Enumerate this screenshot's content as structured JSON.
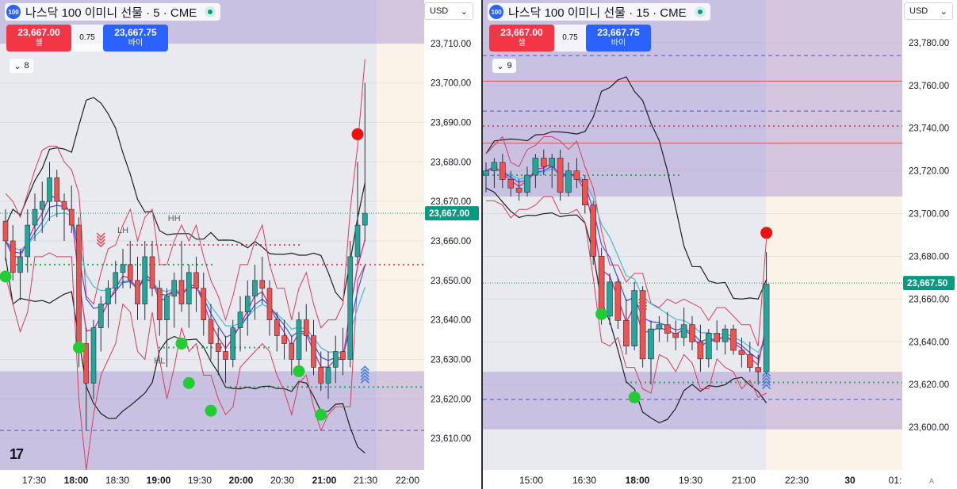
{
  "chart_data": [
    {
      "type": "candlestick",
      "title": "나스닥 100 이미니 선물 · 5 · CME",
      "symbol_badge": "100",
      "sell": {
        "price": "23,667.00",
        "label": "셀"
      },
      "buy": {
        "price": "23,667.75",
        "label": "바이"
      },
      "spread": "0.75",
      "indicator_collapse": "8",
      "currency": "USD",
      "ylim": [
        23602,
        23721
      ],
      "y_ticks": [
        23610,
        23620,
        23630,
        23640,
        23650,
        23660,
        23670,
        23680,
        23690,
        23700,
        23710
      ],
      "y_tick_labels": [
        "23,610.00",
        "23,620.00",
        "23,630.00",
        "23,640.00",
        "23,650.00",
        "23,660.00",
        "23,670.00",
        "23,680.00",
        "23,690.00",
        "23,700.00",
        "23,710.00"
      ],
      "last_price_label": "23,667.00",
      "last_price": 23667,
      "x_tick_labels": [
        "17:30",
        "18:00",
        "18:30",
        "19:00",
        "19:30",
        "20:00",
        "20:30",
        "21:00",
        "21:30",
        "22:00"
      ],
      "annotations": [
        "LH",
        "HH",
        "HL"
      ],
      "zones": [
        {
          "from": 23710,
          "to": 23721,
          "kind": "supply"
        },
        {
          "from": 23602,
          "to": 23627,
          "kind": "demand"
        }
      ],
      "candles": [
        [
          23665,
          23668,
          23655,
          23660
        ],
        [
          23660,
          23664,
          23650,
          23652
        ],
        [
          23652,
          23658,
          23645,
          23656
        ],
        [
          23656,
          23668,
          23652,
          23664
        ],
        [
          23664,
          23672,
          23660,
          23668
        ],
        [
          23668,
          23675,
          23662,
          23670
        ],
        [
          23670,
          23680,
          23665,
          23676
        ],
        [
          23676,
          23678,
          23666,
          23670
        ],
        [
          23670,
          23672,
          23660,
          23668
        ],
        [
          23668,
          23674,
          23662,
          23664
        ],
        [
          23664,
          23666,
          23628,
          23634
        ],
        [
          23634,
          23638,
          23612,
          23624
        ],
        [
          23624,
          23640,
          23620,
          23638
        ],
        [
          23638,
          23646,
          23632,
          23644
        ],
        [
          23644,
          23650,
          23638,
          23648
        ],
        [
          23648,
          23655,
          23644,
          23652
        ],
        [
          23652,
          23658,
          23648,
          23654
        ],
        [
          23654,
          23660,
          23648,
          23650
        ],
        [
          23650,
          23656,
          23640,
          23644
        ],
        [
          23644,
          23660,
          23640,
          23656
        ],
        [
          23656,
          23660,
          23646,
          23648
        ],
        [
          23648,
          23650,
          23636,
          23640
        ],
        [
          23640,
          23648,
          23628,
          23646
        ],
        [
          23646,
          23652,
          23638,
          23650
        ],
        [
          23650,
          23660,
          23642,
          23644
        ],
        [
          23644,
          23654,
          23638,
          23652
        ],
        [
          23652,
          23656,
          23642,
          23648
        ],
        [
          23648,
          23652,
          23636,
          23640
        ],
        [
          23640,
          23644,
          23630,
          23634
        ],
        [
          23634,
          23638,
          23626,
          23632
        ],
        [
          23632,
          23636,
          23624,
          23630
        ],
        [
          23630,
          23640,
          23628,
          23638
        ],
        [
          23638,
          23646,
          23632,
          23642
        ],
        [
          23642,
          23650,
          23636,
          23646
        ],
        [
          23646,
          23654,
          23640,
          23650
        ],
        [
          23650,
          23656,
          23644,
          23648
        ],
        [
          23648,
          23650,
          23636,
          23640
        ],
        [
          23640,
          23642,
          23632,
          23636
        ],
        [
          23636,
          23640,
          23630,
          23634
        ],
        [
          23634,
          23636,
          23626,
          23630
        ],
        [
          23630,
          23642,
          23628,
          23640
        ],
        [
          23640,
          23644,
          23632,
          23636
        ],
        [
          23636,
          23640,
          23626,
          23628
        ],
        [
          23628,
          23632,
          23622,
          23624
        ],
        [
          23624,
          23632,
          23620,
          23628
        ],
        [
          23628,
          23636,
          23624,
          23632
        ],
        [
          23632,
          23638,
          23626,
          23630
        ],
        [
          23630,
          23660,
          23628,
          23656
        ],
        [
          23656,
          23680,
          23654,
          23664
        ],
        [
          23664,
          23700,
          23660,
          23667
        ]
      ],
      "signals": [
        {
          "type": "buy",
          "i": 0,
          "price": 23651
        },
        {
          "type": "buy",
          "i": 10,
          "price": 23633
        },
        {
          "type": "buy",
          "i": 24,
          "price": 23634
        },
        {
          "type": "buy",
          "i": 25,
          "price": 23624
        },
        {
          "type": "buy",
          "i": 28,
          "price": 23617
        },
        {
          "type": "buy",
          "i": 40,
          "price": 23627
        },
        {
          "type": "buy",
          "i": 43,
          "price": 23616
        },
        {
          "type": "sell",
          "i": 48,
          "price": 23687
        }
      ]
    },
    {
      "type": "candlestick",
      "title": "나스닥 100 이미니 선물 · 15 · CME",
      "symbol_badge": "100",
      "sell": {
        "price": "23,667.00",
        "label": "셀"
      },
      "buy": {
        "price": "23,667.75",
        "label": "바이"
      },
      "spread": "0.75",
      "indicator_collapse": "9",
      "currency": "USD",
      "ylim": [
        23580,
        23800
      ],
      "y_ticks": [
        23600,
        23620,
        23640,
        23660,
        23680,
        23700,
        23720,
        23740,
        23760,
        23780
      ],
      "y_tick_labels": [
        "23,600.00",
        "23,620.00",
        "23,640.00",
        "23,660.00",
        "23,680.00",
        "23,700.00",
        "23,720.00",
        "23,740.00",
        "23,760.00",
        "23,780.00"
      ],
      "last_price_label": "23,667.50",
      "last_price": 23667.5,
      "x_tick_labels": [
        "15:00",
        "16:30",
        "18:00",
        "19:30",
        "21:00",
        "22:30",
        "30",
        "01:"
      ],
      "axis_corner": "A",
      "zones": [
        {
          "from": 23708,
          "to": 23800,
          "kind": "supply"
        },
        {
          "from": 23599,
          "to": 23626,
          "kind": "demand"
        }
      ],
      "candles": [
        [
          23718,
          23724,
          23710,
          23720
        ],
        [
          23720,
          23726,
          23712,
          23724
        ],
        [
          23724,
          23728,
          23712,
          23716
        ],
        [
          23716,
          23720,
          23708,
          23712
        ],
        [
          23712,
          23716,
          23706,
          23710
        ],
        [
          23710,
          23722,
          23708,
          23718
        ],
        [
          23718,
          23728,
          23712,
          23726
        ],
        [
          23726,
          23730,
          23718,
          23722
        ],
        [
          23722,
          23728,
          23712,
          23726
        ],
        [
          23726,
          23730,
          23706,
          23710
        ],
        [
          23710,
          23724,
          23708,
          23720
        ],
        [
          23720,
          23726,
          23712,
          23716
        ],
        [
          23716,
          23718,
          23700,
          23704
        ],
        [
          23704,
          23706,
          23676,
          23680
        ],
        [
          23680,
          23684,
          23648,
          23652
        ],
        [
          23652,
          23672,
          23648,
          23668
        ],
        [
          23668,
          23670,
          23646,
          23650
        ],
        [
          23650,
          23660,
          23634,
          23638
        ],
        [
          23638,
          23668,
          23636,
          23664
        ],
        [
          23664,
          23666,
          23628,
          23632
        ],
        [
          23632,
          23650,
          23620,
          23646
        ],
        [
          23646,
          23652,
          23640,
          23648
        ],
        [
          23648,
          23654,
          23640,
          23644
        ],
        [
          23644,
          23650,
          23636,
          23642
        ],
        [
          23642,
          23656,
          23638,
          23648
        ],
        [
          23648,
          23652,
          23636,
          23640
        ],
        [
          23640,
          23648,
          23626,
          23632
        ],
        [
          23632,
          23646,
          23628,
          23644
        ],
        [
          23644,
          23650,
          23636,
          23640
        ],
        [
          23640,
          23648,
          23634,
          23646
        ],
        [
          23646,
          23648,
          23634,
          23636
        ],
        [
          23636,
          23642,
          23628,
          23634
        ],
        [
          23634,
          23640,
          23626,
          23628
        ],
        [
          23628,
          23634,
          23620,
          23626
        ],
        [
          23626,
          23682,
          23624,
          23667
        ]
      ],
      "signals": [
        {
          "type": "buy",
          "i": 14,
          "price": 23653
        },
        {
          "type": "buy",
          "i": 18,
          "price": 23614
        },
        {
          "type": "sell",
          "i": 34,
          "price": 23691
        }
      ]
    }
  ]
}
